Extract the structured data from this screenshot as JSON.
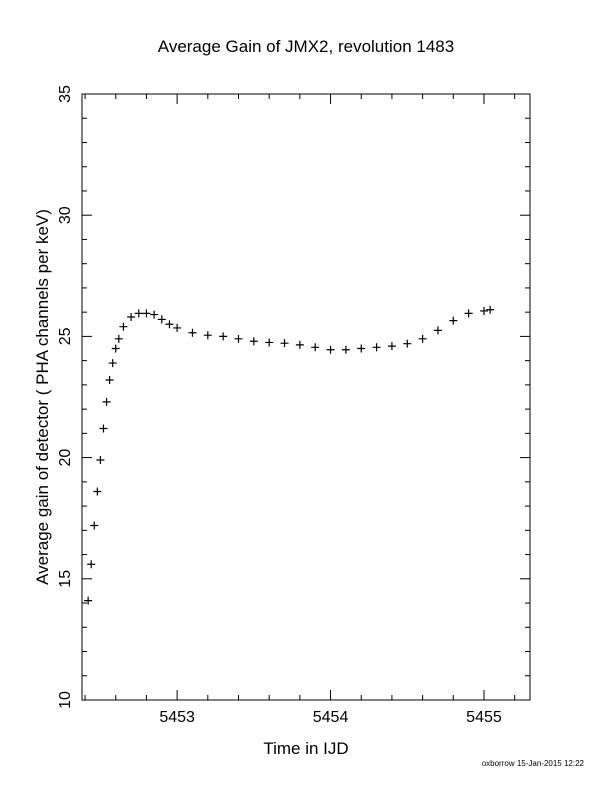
{
  "chart_data": {
    "type": "scatter",
    "title": "Average Gain of JMX2, revolution 1483",
    "xlabel": "Time in IJD",
    "ylabel": "Average gain of detector ( PHA channels per keV)",
    "xlim": [
      5452.38,
      5455.3
    ],
    "ylim": [
      10,
      35
    ],
    "xticks": [
      5453,
      5454,
      5455
    ],
    "xtick_labels": [
      "5453",
      "5454",
      "5455"
    ],
    "yticks": [
      10,
      15,
      20,
      25,
      30,
      35
    ],
    "ytick_labels": [
      "10",
      "15",
      "20",
      "25",
      "30",
      "35"
    ],
    "grid": false,
    "marker": "plus",
    "series": [
      {
        "x": [
          5452.42,
          5452.44,
          5452.46,
          5452.48,
          5452.5,
          5452.52,
          5452.54,
          5452.56,
          5452.58,
          5452.6,
          5452.62,
          5452.65,
          5452.7,
          5452.75,
          5452.8,
          5452.85,
          5452.9,
          5452.95,
          5453.0,
          5453.1,
          5453.2,
          5453.3,
          5453.4,
          5453.5,
          5453.6,
          5453.7,
          5453.8,
          5453.9,
          5454.0,
          5454.1,
          5454.2,
          5454.3,
          5454.4,
          5454.5,
          5454.6,
          5454.7,
          5454.8,
          5454.9,
          5455.0,
          5455.04
        ],
        "y": [
          14.1,
          15.6,
          17.2,
          18.6,
          19.9,
          21.2,
          22.3,
          23.2,
          23.9,
          24.5,
          24.9,
          25.4,
          25.8,
          25.95,
          25.95,
          25.9,
          25.7,
          25.5,
          25.35,
          25.15,
          25.05,
          25.0,
          24.9,
          24.8,
          24.75,
          24.72,
          24.65,
          24.55,
          24.45,
          24.45,
          24.5,
          24.55,
          24.6,
          24.7,
          24.9,
          25.25,
          25.65,
          25.95,
          26.05,
          26.1
        ]
      }
    ]
  },
  "footer": {
    "text": "oxborrow 15-Jan-2015 12:22"
  }
}
